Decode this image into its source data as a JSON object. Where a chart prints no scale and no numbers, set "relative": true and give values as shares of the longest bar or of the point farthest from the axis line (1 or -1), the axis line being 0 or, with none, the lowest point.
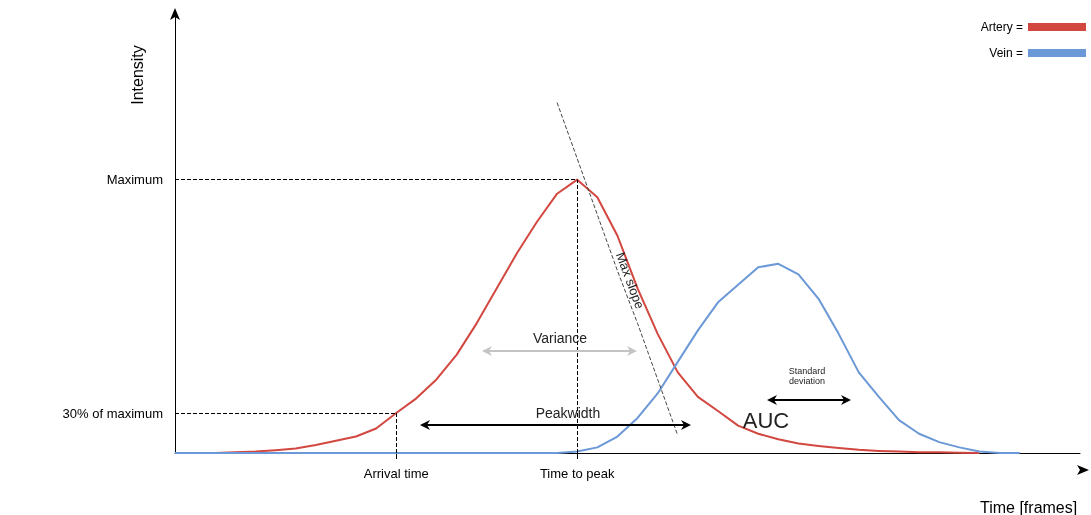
{
  "chart_data": {
    "type": "line",
    "xlabel": "Time [frames]",
    "ylabel": "Intensity",
    "relative": true,
    "marker": "none",
    "grid": false,
    "legend": "top right",
    "categories": [
      null,
      null,
      null,
      null,
      null,
      null,
      null,
      null,
      null,
      null,
      null,
      "Arrival time",
      null,
      null,
      null,
      null,
      null,
      null,
      null,
      null,
      "Time to peak",
      null,
      null,
      null,
      null,
      null,
      null,
      null,
      null,
      null,
      null,
      null,
      null,
      null,
      null,
      null,
      null,
      null,
      null,
      null,
      null,
      null,
      null,
      null,
      null,
      null
    ],
    "series": [
      {
        "name": "Artery =",
        "color": "#d2473f",
        "values": [
          0,
          0,
          0,
          0.002,
          0.004,
          0.008,
          0.013,
          0.023,
          0.035,
          0.047,
          0.07,
          0.114,
          0.156,
          0.21,
          0.28,
          0.37,
          0.47,
          0.57,
          0.66,
          0.74,
          0.78,
          0.73,
          0.62,
          0.47,
          0.34,
          0.23,
          0.16,
          0.12,
          0.078,
          0.055,
          0.039,
          0.027,
          0.02,
          0.014,
          0.009,
          0.006,
          0.004,
          0.002,
          0.002,
          0.001,
          0,
          null,
          null,
          null,
          null,
          null
        ]
      },
      {
        "name": "Vein =",
        "color": "#6b98d6",
        "values": [
          0,
          0,
          0,
          0,
          0,
          0,
          0,
          0,
          0,
          0,
          0,
          0,
          0,
          0,
          0,
          0,
          0,
          0,
          0,
          0,
          0.004,
          0.016,
          0.047,
          0.1,
          0.17,
          0.26,
          0.35,
          0.43,
          0.48,
          0.53,
          0.54,
          0.51,
          0.44,
          0.34,
          0.23,
          0.16,
          0.094,
          0.055,
          0.031,
          0.016,
          0.004,
          0,
          0,
          null,
          null,
          null
        ]
      },
      {
        "color": "#444444",
        "line_style": "dashed",
        "values": [
          null,
          null,
          null,
          null,
          null,
          null,
          null,
          null,
          null,
          null,
          null,
          null,
          null,
          null,
          null,
          null,
          null,
          null,
          null,
          1,
          0.84,
          0.68,
          0.52,
          0.37,
          0.21,
          0.05,
          null,
          null,
          null,
          null,
          null,
          null,
          null,
          null,
          null,
          null,
          null,
          null,
          null,
          null,
          null,
          null,
          null,
          null,
          null,
          null
        ]
      }
    ],
    "ref_lines": [
      {
        "axis": "y",
        "value": 0.78,
        "label": "Maximum"
      },
      {
        "axis": "y",
        "value": 0.114,
        "label": "30% of maximum"
      },
      {
        "axis": "x",
        "value": "Arrival time",
        "label": null
      },
      {
        "axis": "x",
        "value": "Time to peak",
        "label": null
      }
    ],
    "annotations": [
      "Variance",
      "Peakwidth",
      "Max slope",
      "AUC",
      "Standard deviation"
    ]
  }
}
